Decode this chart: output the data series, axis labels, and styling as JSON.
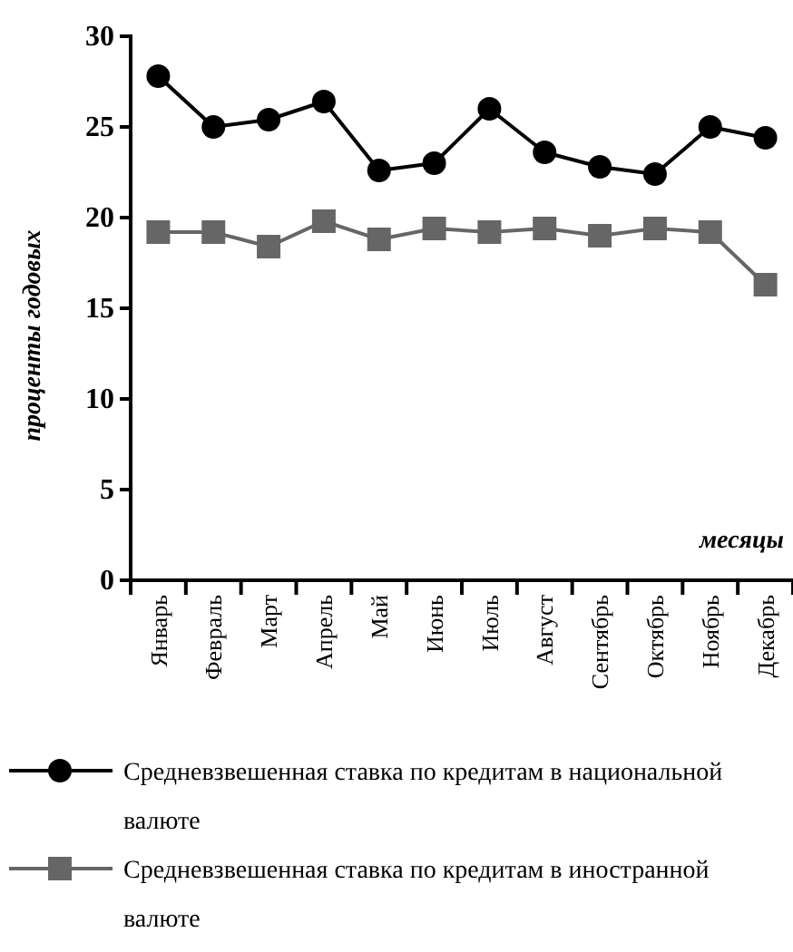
{
  "chart_data": {
    "type": "line",
    "xlabel": "месяцы",
    "ylabel": "проценты годовых",
    "categories": [
      "Январь",
      "Февраль",
      "Март",
      "Апрель",
      "Май",
      "Июнь",
      "Июль",
      "Август",
      "Сентябрь",
      "Октябрь",
      "Ноябрь",
      "Декабрь"
    ],
    "series": [
      {
        "name": "Средневзвешенная ставка по кредитам в национальной валюте",
        "color": "#000000",
        "marker": "circle",
        "values": [
          27.8,
          25.0,
          25.4,
          26.4,
          22.6,
          23.0,
          26.0,
          23.6,
          22.8,
          22.4,
          25.0,
          24.4
        ]
      },
      {
        "name": "Средневзвешенная ставка по кредитам в иностранной валюте",
        "color": "#666666",
        "marker": "square",
        "values": [
          19.2,
          19.2,
          18.4,
          19.8,
          18.8,
          19.4,
          19.2,
          19.4,
          19.0,
          19.4,
          19.2,
          16.3
        ]
      }
    ],
    "ylim": [
      0,
      30
    ],
    "yticks": [
      0,
      5,
      10,
      15,
      20,
      25,
      30
    ],
    "grid": false,
    "legend": "bottom"
  }
}
